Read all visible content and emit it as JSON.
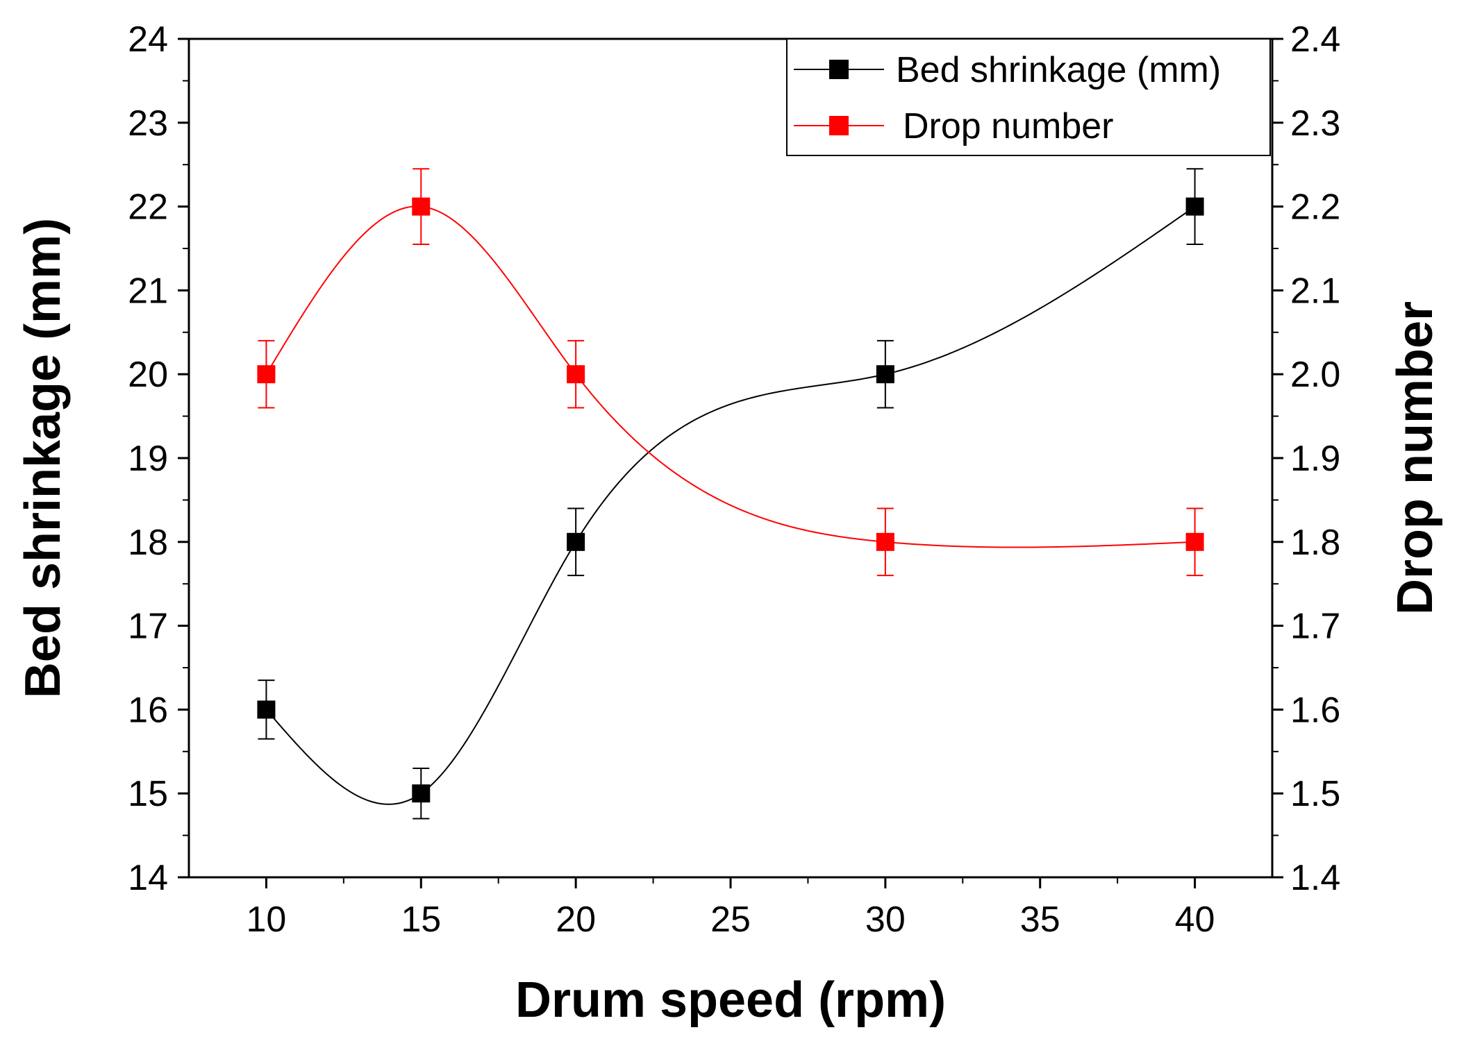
{
  "chart_data": {
    "type": "line",
    "title": "",
    "xlabel": "Drum speed (rpm)",
    "ylabel": "Bed shrinkage (mm)",
    "y2label": "Drop number",
    "xlim": [
      7.5,
      42.5
    ],
    "ylim": [
      14,
      24
    ],
    "y2lim": [
      1.4,
      2.4
    ],
    "xticks": [
      10,
      15,
      20,
      25,
      30,
      35,
      40
    ],
    "yticks": [
      14,
      15,
      16,
      17,
      18,
      19,
      20,
      21,
      22,
      23,
      24
    ],
    "y2ticks": [
      "1.4",
      "1.5",
      "1.6",
      "1.7",
      "1.8",
      "1.9",
      "2.0",
      "2.1",
      "2.2",
      "2.3",
      "2.4"
    ],
    "grid": false,
    "legend_position": "top-right",
    "series": [
      {
        "name": "Bed shrinkage (mm)",
        "axis": "left",
        "color": "#000000",
        "x": [
          10,
          15,
          20,
          30,
          40
        ],
        "y": [
          16,
          15,
          18,
          20,
          22
        ],
        "error": [
          0.35,
          0.3,
          0.4,
          0.4,
          0.45
        ]
      },
      {
        "name": "Drop number",
        "axis": "right",
        "color": "#ff0000",
        "x": [
          10,
          15,
          20,
          30,
          40
        ],
        "y": [
          2.0,
          2.2,
          2.0,
          1.8,
          1.8
        ],
        "error": [
          0.04,
          0.045,
          0.04,
          0.04,
          0.04
        ]
      }
    ]
  }
}
